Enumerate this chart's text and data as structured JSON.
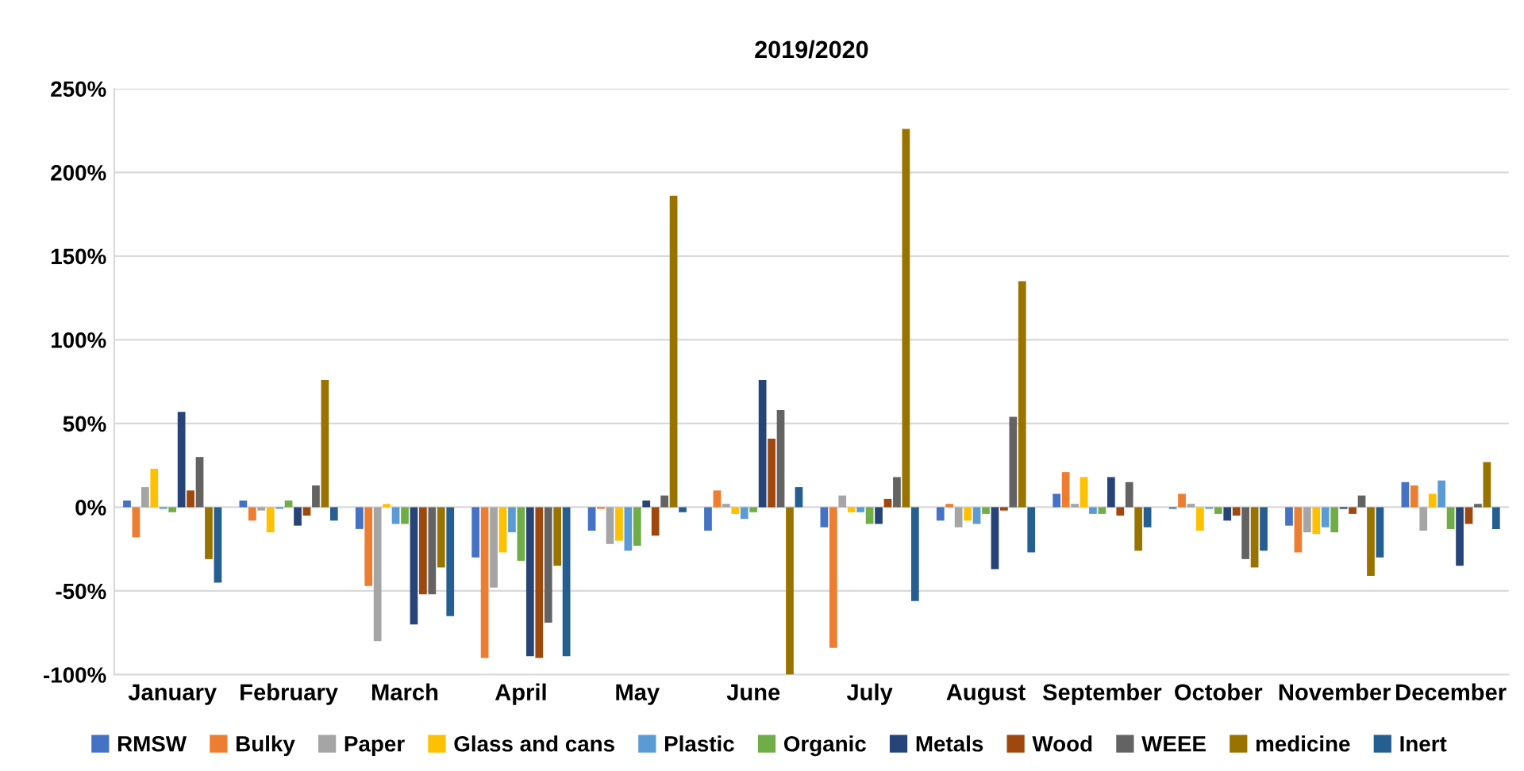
{
  "chart_data": {
    "type": "bar",
    "title": "2019/2020",
    "categories": [
      "January",
      "February",
      "March",
      "April",
      "May",
      "June",
      "July",
      "August",
      "September",
      "October",
      "November",
      "December"
    ],
    "series": [
      {
        "name": "RMSW",
        "color": "#4472c4",
        "values": [
          4,
          4,
          -13,
          -30,
          -14,
          -14,
          -12,
          -8,
          8,
          -1,
          -11,
          15
        ]
      },
      {
        "name": "Bulky",
        "color": "#ed7d31",
        "values": [
          -18,
          -8,
          -47,
          -90,
          -1,
          10,
          -84,
          2,
          21,
          8,
          -27,
          13
        ]
      },
      {
        "name": "Paper",
        "color": "#a5a5a5",
        "values": [
          12,
          -2,
          -80,
          -48,
          -22,
          2,
          7,
          -12,
          2,
          2,
          -15,
          -14
        ]
      },
      {
        "name": "Glass and cans",
        "color": "#ffc000",
        "values": [
          23,
          -15,
          2,
          -27,
          -20,
          -4,
          -3,
          -8,
          18,
          -14,
          -16,
          8
        ]
      },
      {
        "name": "Plastic",
        "color": "#5b9bd5",
        "values": [
          -1,
          -1,
          -10,
          -15,
          -26,
          -7,
          -3,
          -10,
          -4,
          -1,
          -12,
          16
        ]
      },
      {
        "name": "Organic",
        "color": "#70ad47",
        "values": [
          -3,
          4,
          -10,
          -32,
          -23,
          -3,
          -10,
          -4,
          -4,
          -4,
          -15,
          -13
        ]
      },
      {
        "name": "Metals",
        "color": "#264478",
        "values": [
          57,
          -11,
          -70,
          -89,
          4,
          76,
          -10,
          -37,
          18,
          -8,
          -1,
          -35
        ]
      },
      {
        "name": "Wood",
        "color": "#9e480e",
        "values": [
          10,
          -5,
          -52,
          -90,
          -17,
          41,
          5,
          -2,
          -5,
          -5,
          -4,
          -10
        ]
      },
      {
        "name": "WEEE",
        "color": "#636363",
        "values": [
          30,
          13,
          -52,
          -69,
          7,
          58,
          18,
          54,
          15,
          -31,
          7,
          2
        ]
      },
      {
        "name": "medicine",
        "color": "#997300",
        "values": [
          -31,
          76,
          -36,
          -35,
          186,
          -100,
          226,
          135,
          -26,
          -36,
          -41,
          27
        ]
      },
      {
        "name": "Inert",
        "color": "#255e91",
        "values": [
          -45,
          -8,
          -65,
          -89,
          -3,
          12,
          -56,
          -27,
          -12,
          -26,
          -30,
          -13
        ]
      }
    ],
    "ylim": [
      -100,
      250
    ],
    "yticks": [
      {
        "value": -100,
        "label": "-100%"
      },
      {
        "value": -50,
        "label": "-50%"
      },
      {
        "value": 0,
        "label": "0%"
      },
      {
        "value": 50,
        "label": "50%"
      },
      {
        "value": 100,
        "label": "100%"
      },
      {
        "value": 150,
        "label": "150%"
      },
      {
        "value": 200,
        "label": "200%"
      },
      {
        "value": 250,
        "label": "250%"
      }
    ],
    "grid": "y",
    "legend": "bottom"
  }
}
